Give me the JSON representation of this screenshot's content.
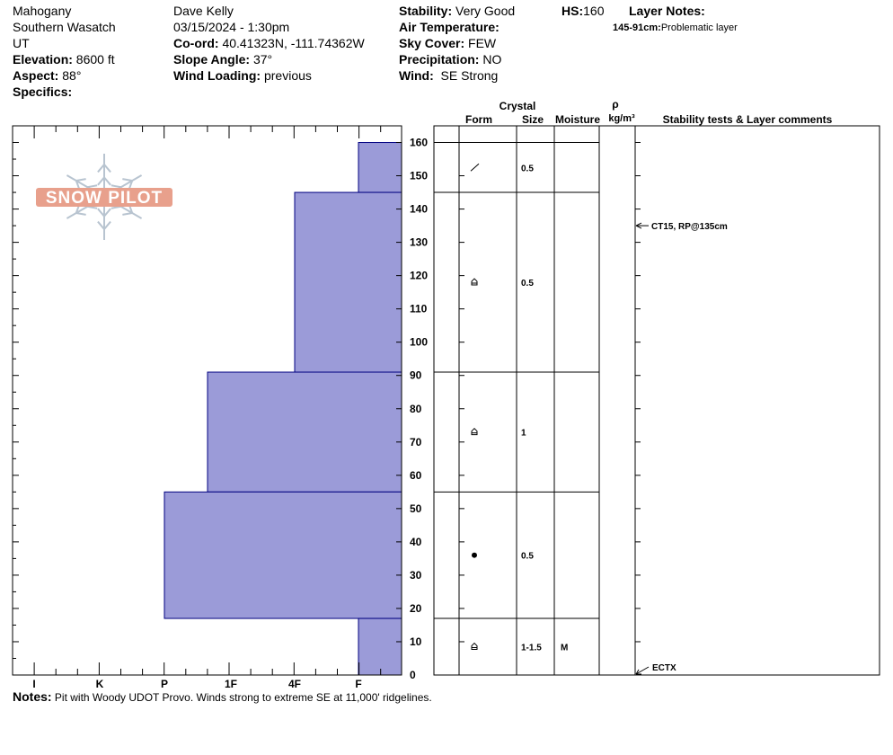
{
  "header": {
    "location": "Mahogany",
    "range": "Southern Wasatch",
    "state": "UT",
    "elevation_label": "Elevation:",
    "elevation": "8600 ft",
    "aspect_label": "Aspect:",
    "aspect": "88°",
    "specifics_label": "Specifics:",
    "observer": "Dave Kelly",
    "datetime": "03/15/2024 - 1:30pm",
    "coord_label": "Co-ord:",
    "coord": "40.41323N, -111.74362W",
    "slope_label": "Slope Angle:",
    "slope": "37°",
    "wind_loading_label": "Wind Loading:",
    "wind_loading": "previous",
    "stability_label": "Stability:",
    "stability": "Very Good",
    "air_temp_label": "Air Temperature:",
    "sky_label": "Sky Cover:",
    "sky": "FEW",
    "precip_label": "Precipitation:",
    "precip": "NO",
    "wind_label": "Wind:",
    "wind": " SE Strong",
    "hs_label": "HS:",
    "hs": "160",
    "layer_notes_label": "Layer Notes:",
    "layer_note_range": "145-91cm:",
    "layer_note_text": "Problematic layer"
  },
  "logo_text": "SNOW PILOT",
  "columns": {
    "crystal": "Crystal",
    "form": "Form",
    "size": "Size",
    "moisture": "Moisture",
    "rho": "ρ",
    "density_unit": "kg/m³",
    "comments": "Stability tests & Layer comments"
  },
  "hardness_labels": [
    "I",
    "K",
    "P",
    "1F",
    "4F",
    "F"
  ],
  "depth_ticks": [
    0,
    10,
    20,
    30,
    40,
    50,
    60,
    70,
    80,
    90,
    100,
    110,
    120,
    130,
    140,
    150,
    160
  ],
  "chart_data": {
    "type": "bar",
    "ylim": [
      0,
      160
    ],
    "layers": [
      {
        "top": 160,
        "bottom": 145,
        "hardness": "F"
      },
      {
        "top": 145,
        "bottom": 91,
        "hardness": "4F"
      },
      {
        "top": 91,
        "bottom": 55,
        "hardness": "1F-"
      },
      {
        "top": 55,
        "bottom": 17,
        "hardness": "P"
      },
      {
        "top": 17,
        "bottom": 0,
        "hardness": "F"
      }
    ]
  },
  "layer_details": [
    {
      "top": 160,
      "bottom": 145,
      "form": "precipitation-particles-icon",
      "size": "0.5",
      "moisture": ""
    },
    {
      "top": 145,
      "bottom": 91,
      "form": "depth-hoar-icon",
      "size": "0.5",
      "moisture": ""
    },
    {
      "top": 91,
      "bottom": 55,
      "form": "depth-hoar-icon",
      "size": "1",
      "moisture": ""
    },
    {
      "top": 55,
      "bottom": 17,
      "form": "rounded-grains-icon",
      "size": "0.5",
      "moisture": ""
    },
    {
      "top": 17,
      "bottom": 0,
      "form": "depth-hoar-icon",
      "size": "1-1.5",
      "moisture": "M"
    }
  ],
  "test_results": [
    {
      "depth": 135,
      "text": "CT15, RP@135cm"
    },
    {
      "depth": 0,
      "text": "ECTX"
    }
  ],
  "notes_label": "Notes:",
  "notes": " Pit with Woody UDOT Provo. Winds strong to extreme SE at 11,000' ridgelines.",
  "colors": {
    "layer_fill": "#9b9bd8",
    "layer_stroke": "#000080",
    "logo": "#e8a08c",
    "flake": "#b8c4d0"
  }
}
